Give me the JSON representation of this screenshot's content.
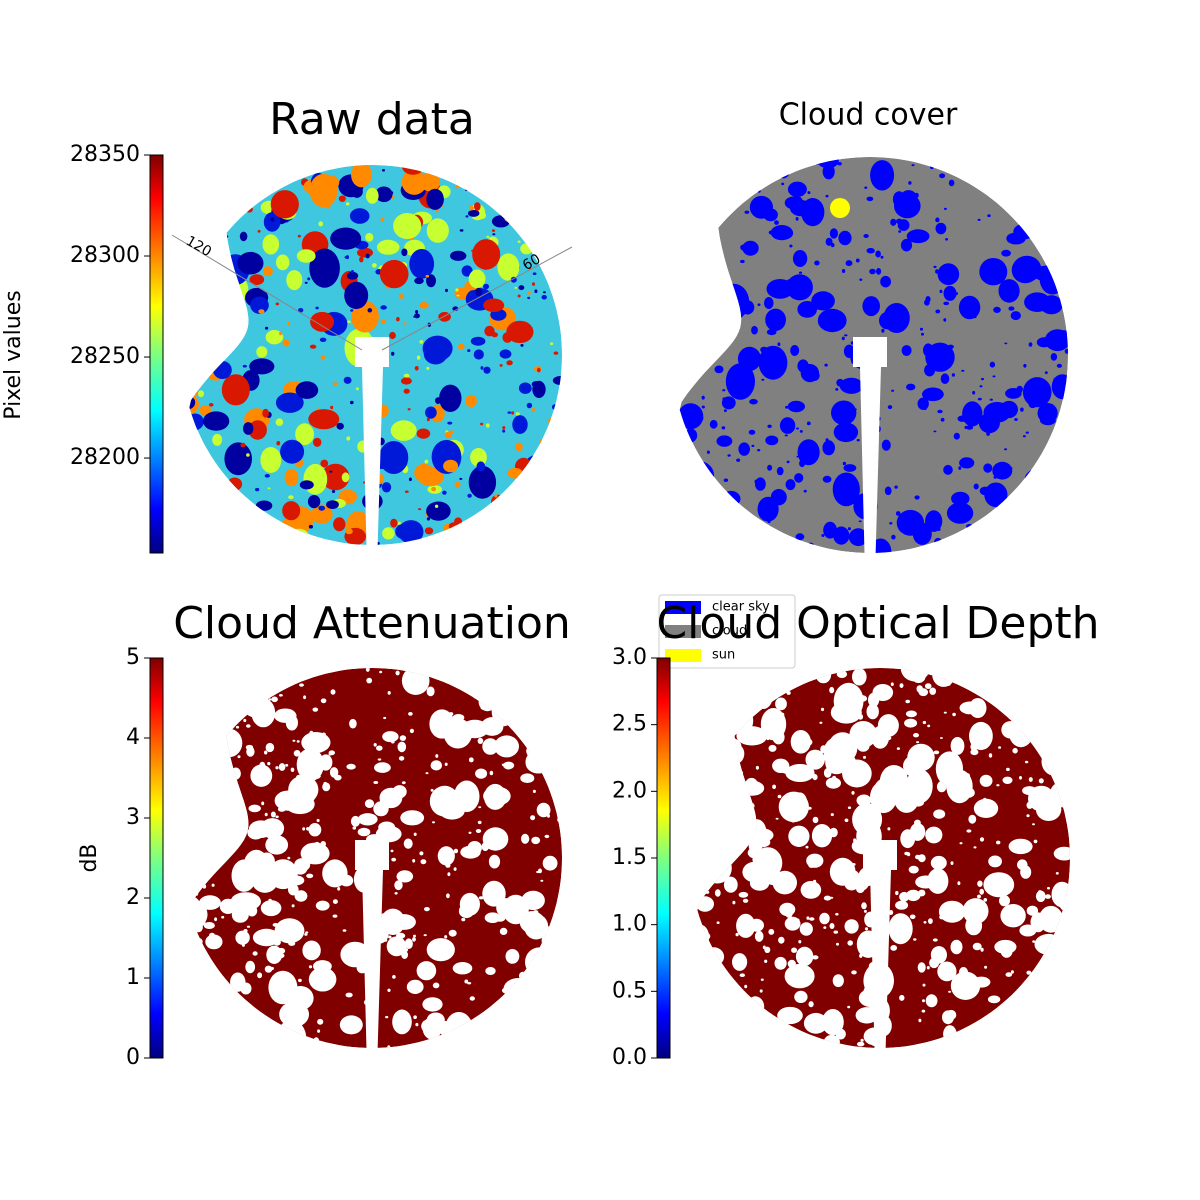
{
  "chart_data": [
    {
      "type": "image",
      "title": "Raw data",
      "colorbar_label": "Pixel values",
      "cmap": "jet",
      "ylim": [
        28153,
        28350
      ],
      "yticks": [
        28200,
        28250,
        28300,
        28350
      ],
      "annotations": [
        "120",
        "60"
      ]
    },
    {
      "type": "image",
      "title": "Cloud cover",
      "series": [
        {
          "name": "clear sky",
          "color": "#0000ff"
        },
        {
          "name": "cloud",
          "color": "#808080"
        },
        {
          "name": "sun",
          "color": "#ffff00"
        }
      ]
    },
    {
      "type": "image",
      "title": "Cloud Attenuation",
      "colorbar_label": "dB",
      "cmap": "jet",
      "ylim": [
        0,
        5
      ],
      "yticks": [
        0,
        1,
        2,
        3,
        4,
        5
      ]
    },
    {
      "type": "image",
      "title": "Cloud Optical Depth",
      "cmap": "jet",
      "ylim": [
        0,
        3
      ],
      "yticks": [
        {
          "value": 0,
          "label": "0.0"
        },
        {
          "value": 0.5,
          "label": "0.5"
        },
        {
          "value": 1,
          "label": "1.0"
        },
        {
          "value": 1.5,
          "label": "1.5"
        },
        {
          "value": 2,
          "label": "2.0"
        },
        {
          "value": 2.5,
          "label": "2.5"
        },
        {
          "value": 3,
          "label": "3.0"
        }
      ]
    }
  ]
}
